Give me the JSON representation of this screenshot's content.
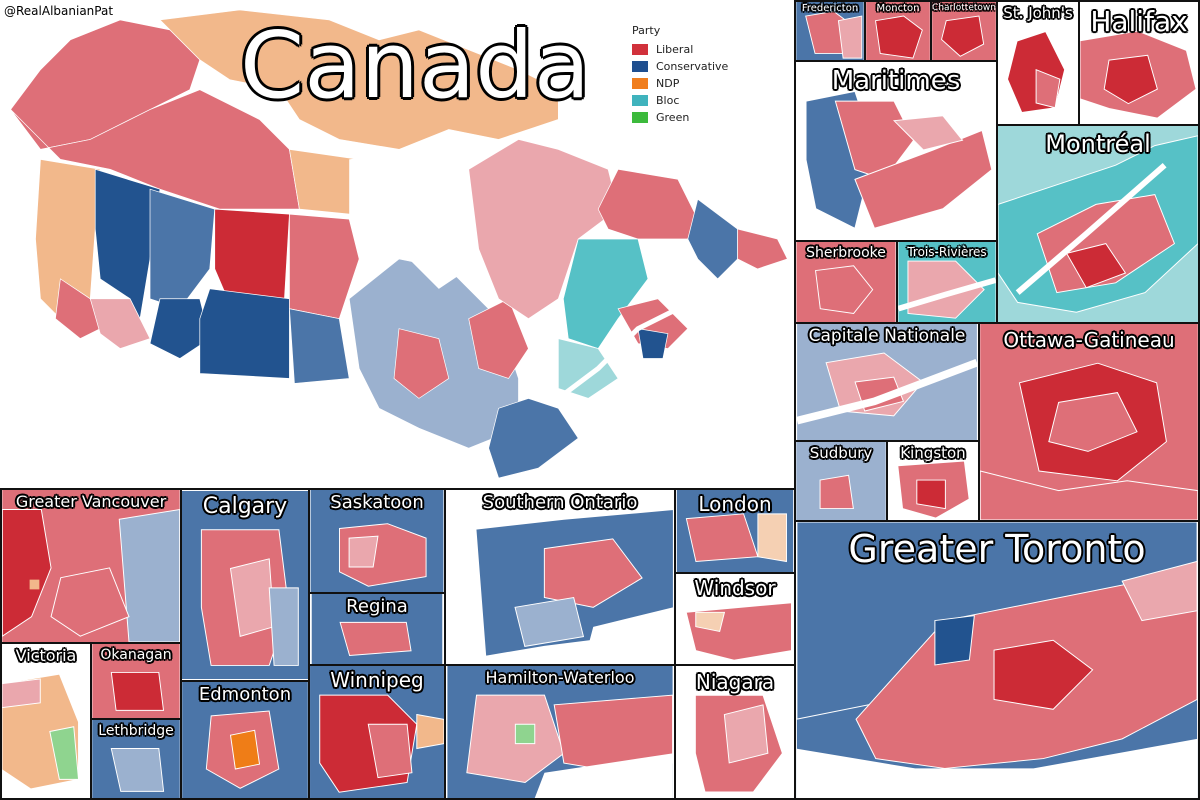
{
  "credit": "@RealAlbanianPat",
  "main_title": "Canada",
  "legend": {
    "title": "Party",
    "items": [
      {
        "label": "Liberal",
        "color": "#d1313b"
      },
      {
        "label": "Conservative",
        "color": "#1f4f8f"
      },
      {
        "label": "NDP",
        "color": "#f07e1e"
      },
      {
        "label": "Bloc",
        "color": "#3fb3bd"
      },
      {
        "label": "Green",
        "color": "#3cba3c"
      }
    ]
  },
  "colors": {
    "liberal_strong": "#cc2b36",
    "liberal": "#de6f78",
    "liberal_light": "#eaa7ad",
    "conservative_strong": "#22538f",
    "conservative": "#4b75a8",
    "conservative_light": "#9bb1cf",
    "ndp": "#f2b88b",
    "ndp_strong": "#ef7d17",
    "bloc": "#56c1c6",
    "bloc_light": "#9ed8da",
    "green": "#8fd48f",
    "water": "#ffffff"
  },
  "panels": {
    "fredericton": "Fredericton",
    "moncton": "Moncton",
    "charlottetown": "Charlottetown",
    "st_johns": "St. John's",
    "halifax": "Halifax",
    "maritimes": "Maritimes",
    "montreal": "Montréal",
    "sherbrooke": "Sherbrooke",
    "trois_rivieres": "Trois-Rivières",
    "capitale_nationale": "Capitale Nationale",
    "ottawa_gatineau": "Ottawa-Gatineau",
    "sudbury": "Sudbury",
    "kingston": "Kingston",
    "greater_vancouver": "Greater Vancouver",
    "calgary": "Calgary",
    "saskatoon": "Saskatoon",
    "southern_ontario": "Southern Ontario",
    "london": "London",
    "regina": "Regina",
    "windsor": "Windsor",
    "victoria": "Victoria",
    "okanagan": "Okanagan",
    "edmonton": "Edmonton",
    "winnipeg": "Winnipeg",
    "hamilton_waterloo": "Hamilton-Waterloo",
    "niagara": "Niagara",
    "lethbridge": "Lethbridge",
    "greater_toronto": "Greater Toronto"
  }
}
